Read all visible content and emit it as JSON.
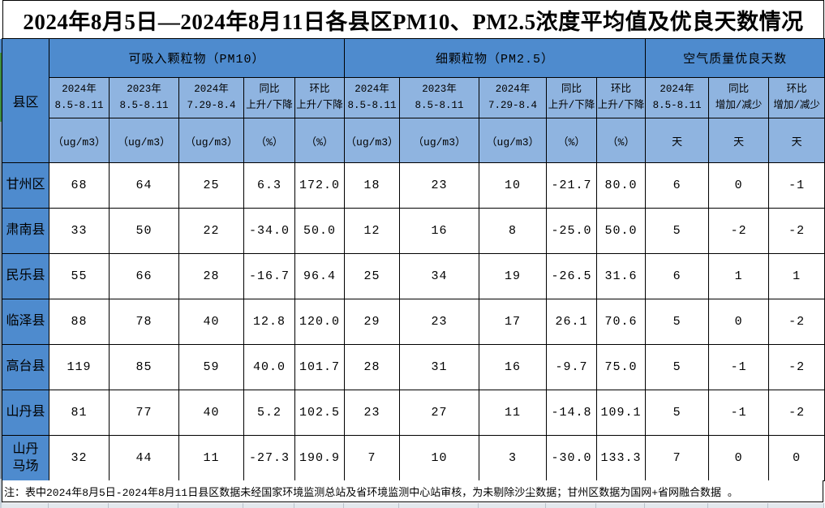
{
  "title": "2024年8月5日—2024年8月11日各县区PM10、PM2.5浓度平均值及优良天数情况",
  "table": {
    "corner": "县区",
    "groups": [
      {
        "label": "可吸入颗粒物（PM10）",
        "columns": [
          "2024年\n8.5-8.11",
          "2023年\n8.5-8.11",
          "2024年\n7.29-8.4",
          "同比\n上升/下降",
          "环比\n上升/下降"
        ],
        "units": [
          "（ug/m3）",
          "（ug/m3）",
          "（ug/m3）",
          "（%）",
          "（%）"
        ]
      },
      {
        "label": "细颗粒物（PM2.5）",
        "columns": [
          "2024年\n8.5-8.11",
          "2023年\n8.5-8.11",
          "2024年\n7.29-8.4",
          "同比\n上升/下降",
          "环比\n上升/下降"
        ],
        "units": [
          "（ug/m3）",
          "（ug/m3）",
          "（ug/m3）",
          "（%）",
          "（%）"
        ]
      },
      {
        "label": "空气质量优良天数",
        "columns": [
          "2024年\n8.5-8.11",
          "同比\n增加/减少",
          "环比\n增加/减少"
        ],
        "units": [
          "天",
          "天",
          "天"
        ]
      }
    ],
    "rows": [
      {
        "name": "甘州区",
        "values": [
          "68",
          "64",
          "25",
          "6.3",
          "172.0",
          "18",
          "23",
          "10",
          "-21.7",
          "80.0",
          "6",
          "0",
          "-1"
        ]
      },
      {
        "name": "肃南县",
        "values": [
          "33",
          "50",
          "22",
          "-34.0",
          "50.0",
          "12",
          "16",
          "8",
          "-25.0",
          "50.0",
          "5",
          "-2",
          "-2"
        ]
      },
      {
        "name": "民乐县",
        "values": [
          "55",
          "66",
          "28",
          "-16.7",
          "96.4",
          "25",
          "34",
          "19",
          "-26.5",
          "31.6",
          "6",
          "1",
          "1"
        ]
      },
      {
        "name": "临泽县",
        "values": [
          "88",
          "78",
          "40",
          "12.8",
          "120.0",
          "29",
          "23",
          "17",
          "26.1",
          "70.6",
          "5",
          "0",
          "-2"
        ]
      },
      {
        "name": "高台县",
        "values": [
          "119",
          "85",
          "59",
          "40.0",
          "101.7",
          "28",
          "31",
          "16",
          "-9.7",
          "75.0",
          "5",
          "-1",
          "-2"
        ]
      },
      {
        "name": "山丹县",
        "values": [
          "81",
          "77",
          "40",
          "5.2",
          "102.5",
          "23",
          "27",
          "11",
          "-14.8",
          "109.1",
          "5",
          "-1",
          "-2"
        ]
      },
      {
        "name": "山丹\n马场",
        "values": [
          "32",
          "44",
          "11",
          "-27.3",
          "190.9",
          "7",
          "10",
          "3",
          "-30.0",
          "133.3",
          "7",
          "0",
          "0"
        ]
      }
    ]
  },
  "note": "注：表中2024年8月5日-2024年8月11日县区数据未经国家环境监测总站及省环境监测中心站审核，为未剔除沙尘数据；甘州区数据为国网+省网融合数据 。",
  "colors": {
    "header_blue": "#4e8bce",
    "subheader_blue": "#8fb4e0",
    "accent_green": "#3e8e41",
    "border_black": "#000000"
  }
}
